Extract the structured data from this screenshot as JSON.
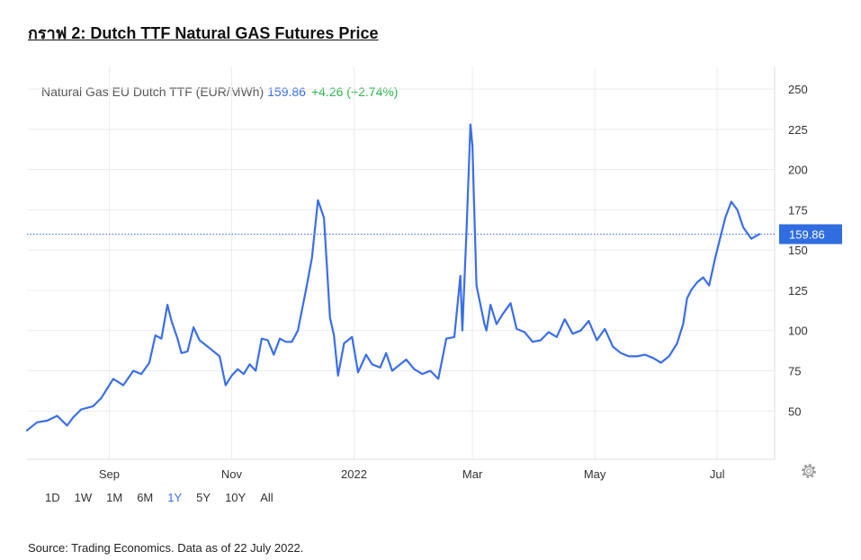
{
  "heading": "กราฟ 2: Dutch TTF Natural GAS Futures Price",
  "legend": {
    "name": "Natural Gas EU Dutch TTF (EUR/MWh)",
    "value": "159.86",
    "change": "+4.26 (+2.74%)"
  },
  "source": "Source: Trading Economics. Data as of 22 July 2022.",
  "ranges": [
    "1D",
    "1W",
    "1M",
    "6M",
    "1Y",
    "5Y",
    "10Y",
    "All"
  ],
  "active_range": "1Y",
  "colors": {
    "line": "#3a6ee8",
    "change_positive": "#2fb54a",
    "price_tag": "#2f6de0"
  },
  "icons": {
    "settings": "gear-icon"
  },
  "chart_data": {
    "type": "line",
    "series": [
      {
        "name": "Natural Gas EU Dutch TTF (EUR/MWh)",
        "x": [
          "2021-07-22",
          "2021-07-27",
          "2021-08-01",
          "2021-08-06",
          "2021-08-11",
          "2021-08-14",
          "2021-08-18",
          "2021-08-24",
          "2021-08-28",
          "2021-09-03",
          "2021-09-08",
          "2021-09-13",
          "2021-09-17",
          "2021-09-21",
          "2021-09-24",
          "2021-09-27",
          "2021-09-30",
          "2021-10-02",
          "2021-10-05",
          "2021-10-07",
          "2021-10-10",
          "2021-10-13",
          "2021-10-16",
          "2021-10-19",
          "2021-10-22",
          "2021-10-26",
          "2021-10-29",
          "2021-11-01",
          "2021-11-04",
          "2021-11-07",
          "2021-11-10",
          "2021-11-13",
          "2021-11-16",
          "2021-11-19",
          "2021-11-22",
          "2021-11-25",
          "2021-11-28",
          "2021-12-01",
          "2021-12-04",
          "2021-12-08",
          "2021-12-11",
          "2021-12-14",
          "2021-12-17",
          "2021-12-20",
          "2021-12-22",
          "2021-12-24",
          "2021-12-27",
          "2021-12-31",
          "2022-01-03",
          "2022-01-07",
          "2022-01-10",
          "2022-01-14",
          "2022-01-17",
          "2022-01-20",
          "2022-01-24",
          "2022-01-27",
          "2022-01-31",
          "2022-02-04",
          "2022-02-08",
          "2022-02-12",
          "2022-02-16",
          "2022-02-20",
          "2022-02-23",
          "2022-02-24",
          "2022-02-26",
          "2022-02-28",
          "2022-03-01",
          "2022-03-03",
          "2022-03-07",
          "2022-03-08",
          "2022-03-10",
          "2022-03-13",
          "2022-03-16",
          "2022-03-20",
          "2022-03-23",
          "2022-03-27",
          "2022-03-31",
          "2022-04-04",
          "2022-04-08",
          "2022-04-12",
          "2022-04-16",
          "2022-04-20",
          "2022-04-24",
          "2022-04-28",
          "2022-05-02",
          "2022-05-06",
          "2022-05-10",
          "2022-05-14",
          "2022-05-18",
          "2022-05-22",
          "2022-05-26",
          "2022-05-30",
          "2022-06-03",
          "2022-06-07",
          "2022-06-11",
          "2022-06-14",
          "2022-06-16",
          "2022-06-18",
          "2022-06-21",
          "2022-06-24",
          "2022-06-27",
          "2022-06-30",
          "2022-07-03",
          "2022-07-05",
          "2022-07-08",
          "2022-07-11",
          "2022-07-14",
          "2022-07-18",
          "2022-07-22"
        ],
        "y": [
          38,
          43,
          44,
          47,
          41,
          46,
          51,
          53,
          58,
          70,
          66,
          75,
          73,
          80,
          97,
          95,
          116,
          106,
          95,
          86,
          87,
          102,
          94,
          91,
          88,
          84,
          66,
          72,
          76,
          73,
          79,
          75,
          95,
          94,
          85,
          95,
          93,
          93,
          100,
          125,
          145,
          181,
          170,
          108,
          97,
          72,
          92,
          96,
          74,
          85,
          79,
          77,
          86,
          75,
          79,
          82,
          76,
          73,
          75,
          70,
          95,
          96,
          134,
          100,
          160,
          228,
          215,
          128,
          104,
          100,
          116,
          104,
          110,
          117,
          101,
          99,
          93,
          94,
          99,
          96,
          107,
          98,
          100,
          106,
          94,
          101,
          90,
          86,
          84,
          84,
          85,
          83,
          80,
          84,
          92,
          104,
          120,
          125,
          130,
          133,
          128,
          145,
          160,
          170,
          180,
          175,
          164,
          157,
          159.86
        ]
      }
    ],
    "x_ticks": [
      "Sep",
      "Nov",
      "2022",
      "Mar",
      "May",
      "Jul"
    ],
    "y_ticks": [
      50,
      75,
      100,
      125,
      150,
      175,
      200,
      225,
      250
    ],
    "ylim": [
      20,
      264
    ],
    "last_value": 159.86,
    "grid": true,
    "legend_position": "top-left"
  }
}
